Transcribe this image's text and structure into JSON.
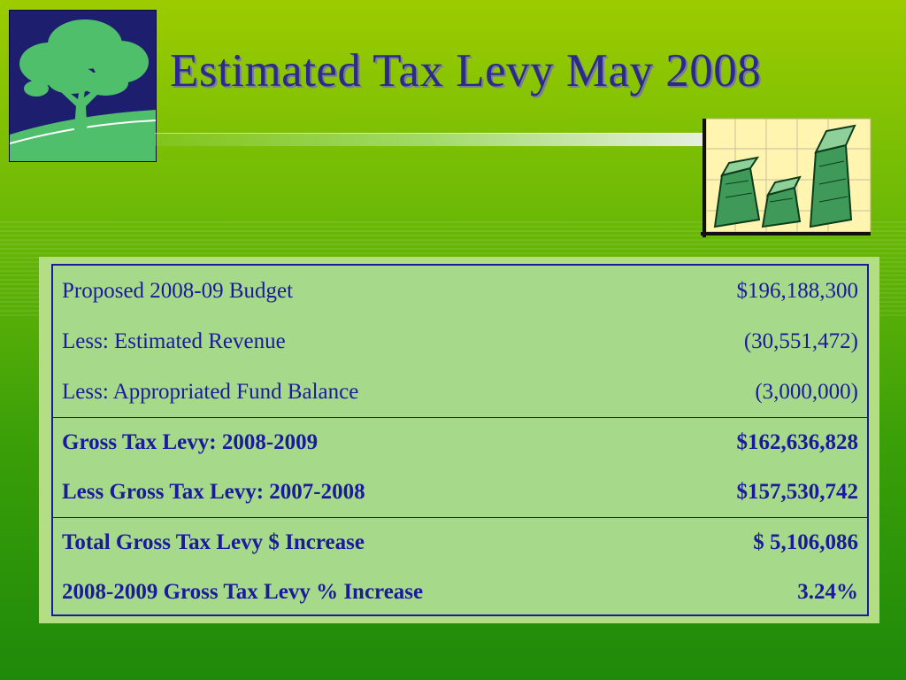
{
  "slide": {
    "title": "Estimated Tax Levy May 2008"
  },
  "levy_table": {
    "groups": [
      {
        "rows": [
          {
            "label": "Proposed 2008-09 Budget",
            "value": "$196,188,300"
          },
          {
            "label": "Less:  Estimated Revenue",
            "value": "(30,551,472)"
          },
          {
            "label": "Less:  Appropriated Fund Balance",
            "value": "(3,000,000)"
          }
        ]
      },
      {
        "rows": [
          {
            "label": "Gross Tax Levy:  2008-2009",
            "value": "$162,636,828"
          },
          {
            "label": "Less Gross Tax Levy:  2007-2008",
            "value": "$157,530,742"
          }
        ]
      },
      {
        "rows": [
          {
            "label": "Total Gross Tax Levy $ Increase",
            "value": "$ 5,106,086"
          },
          {
            "label": "2008-2009 Gross Tax Levy % Increase",
            "value": "3.24%"
          }
        ]
      }
    ]
  },
  "colors": {
    "title_text": "#2b2b88",
    "table_text": "#1a1a9c",
    "table_border": "#1a1aa0",
    "table_background": "#a6d98a",
    "logo_background": "#1e1e6e",
    "logo_tree": "#4fbf6c"
  },
  "icons": [
    "tree-logo-icon",
    "money-bar-chart-icon"
  ]
}
